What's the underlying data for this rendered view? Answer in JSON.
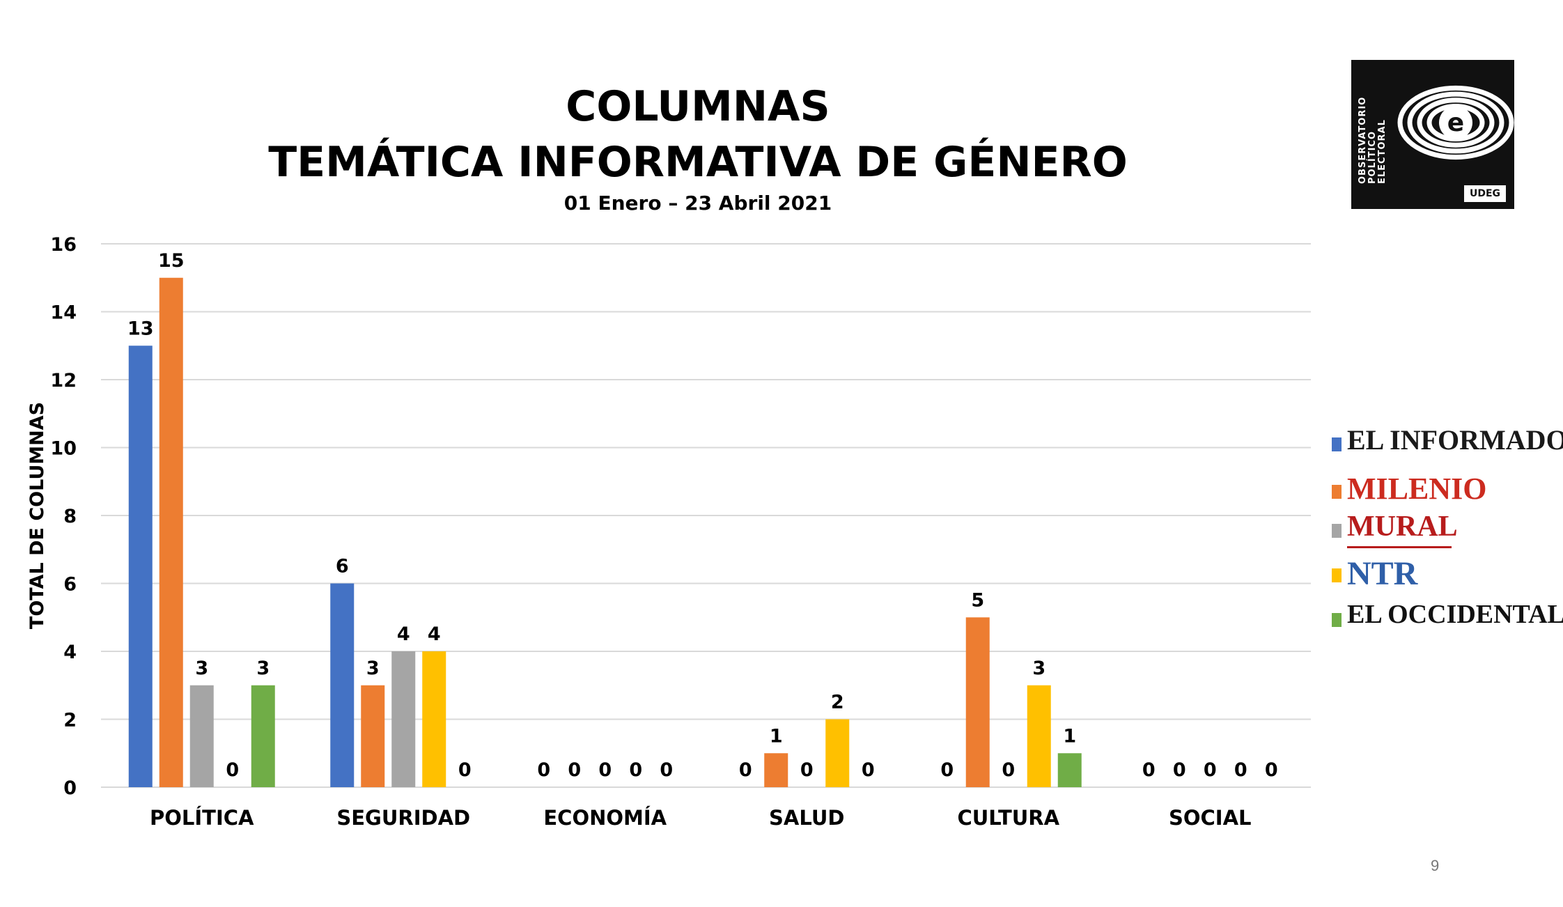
{
  "title_line1": "COLUMNAS",
  "title_line2": "TEMÁTICA INFORMATIVA DE GÉNERO",
  "subtitle": "01 Enero – 23 Abril 2021",
  "logo": {
    "text_lines": [
      "OBSERVATORIO",
      "POLÍTICO",
      "ELECTORAL"
    ],
    "mark": "e",
    "badge": "UDEG"
  },
  "page_number": "9",
  "chart_data": {
    "type": "bar",
    "ylabel": "TOTAL DE COLUMNAS",
    "ylim": [
      0,
      16
    ],
    "yticks": [
      0,
      2,
      4,
      6,
      8,
      10,
      12,
      14,
      16
    ],
    "grid": true,
    "legend_position": "right",
    "categories": [
      "POLÍTICA",
      "SEGURIDAD",
      "ECONOMÍA",
      "SALUD",
      "CULTURA",
      "SOCIAL"
    ],
    "series": [
      {
        "name": "EL INFORMADOR",
        "color": "#4472C4",
        "values": [
          13,
          6,
          0,
          0,
          0,
          0
        ]
      },
      {
        "name": "MILENIO",
        "color": "#ED7D31",
        "values": [
          15,
          3,
          0,
          1,
          5,
          0
        ]
      },
      {
        "name": "MURAL",
        "color": "#A5A5A5",
        "values": [
          3,
          4,
          0,
          0,
          0,
          0
        ]
      },
      {
        "name": "NTR",
        "color": "#FFC000",
        "values": [
          0,
          4,
          0,
          2,
          3,
          0
        ]
      },
      {
        "name": "EL OCCIDENTAL",
        "color": "#70AD47",
        "values": [
          3,
          0,
          0,
          0,
          1,
          0
        ]
      }
    ]
  }
}
